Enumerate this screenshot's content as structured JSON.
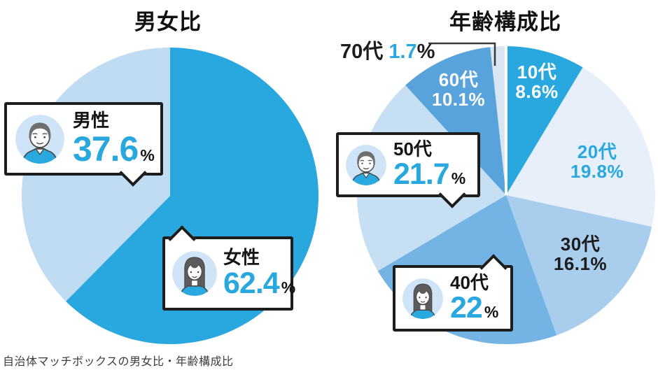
{
  "page": {
    "caption": "自治体マッチボックスの男女比・年齢構成比",
    "background": "#ffffff"
  },
  "colors": {
    "accent_blue": "#29a8e0",
    "ink": "#1d1d1d",
    "avatar_bg": "#cfe4f6"
  },
  "chart_data": [
    {
      "type": "pie",
      "title": "男女比",
      "start_angle_deg": 0,
      "direction": "clockwise",
      "slices": [
        {
          "label": "女性",
          "value": 62.4,
          "color": "#29a8e0"
        },
        {
          "label": "男性",
          "value": 37.6,
          "color": "#bfdcf3"
        }
      ]
    },
    {
      "type": "pie",
      "title": "年齢構成比",
      "start_angle_deg": 0,
      "direction": "clockwise",
      "top_divider": true,
      "slices": [
        {
          "label": "10代",
          "value": 8.6,
          "color": "#29a8e0"
        },
        {
          "label": "20代",
          "value": 19.8,
          "color": "#e7f0fa"
        },
        {
          "label": "30代",
          "value": 16.1,
          "color": "#a9cdec"
        },
        {
          "label": "40代",
          "value": 22,
          "color": "#73b4e5"
        },
        {
          "label": "50代",
          "value": 21.7,
          "color": "#c7dff3"
        },
        {
          "label": "60代",
          "value": 10.1,
          "color": "#58a3dc"
        },
        {
          "label": "70代",
          "value": 1.7,
          "color": "#d8e6f3"
        }
      ]
    }
  ],
  "left_chart": {
    "callouts": {
      "male": {
        "label": "男性",
        "value": "37.6",
        "unit": "%"
      },
      "female": {
        "label": "女性",
        "value": "62.4",
        "unit": "%"
      }
    }
  },
  "right_chart": {
    "callouts": {
      "age50": {
        "label": "50代",
        "value": "21.7",
        "unit": "%"
      },
      "age40": {
        "label": "40代",
        "value": "22",
        "unit": "%"
      }
    },
    "inner_labels": {
      "age10": {
        "label": "10代",
        "value": "8.6%"
      },
      "age20": {
        "label": "20代",
        "value": "19.8%"
      },
      "age30": {
        "label": "30代",
        "value": "16.1%"
      },
      "age60": {
        "label": "60代",
        "value": "10.1%"
      },
      "age70": {
        "label": "70代",
        "value": "1.7",
        "unit": "%"
      }
    }
  }
}
